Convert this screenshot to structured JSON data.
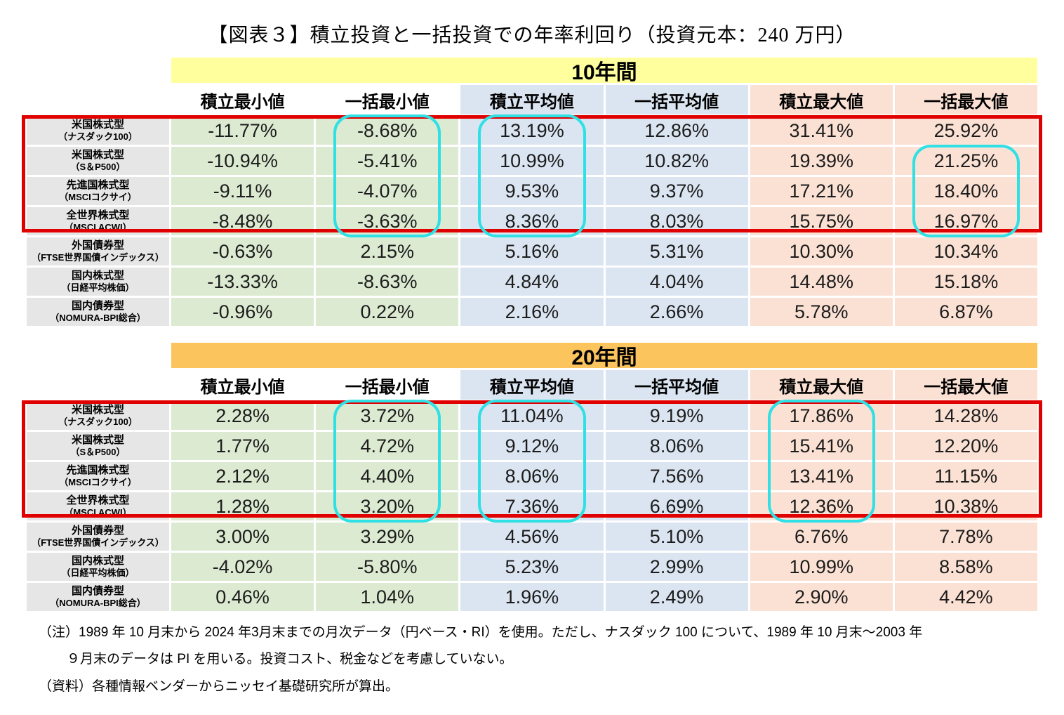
{
  "title": "【図表３】積立投資と一括投資での年率利回り（投資元本：240 万円）",
  "colors": {
    "min_cell": "#dcead2",
    "avg_cell": "#dbe5f1",
    "max_cell": "#fbe1d4",
    "label_cell": "#e7e6e6",
    "band_10y": "#ffff9e",
    "band_20y": "#fcc45c",
    "red_box": "#e00000",
    "cyan": "#2fe0e4"
  },
  "chart_data": {
    "type": "table",
    "title": "積立投資と一括投資での年率利回り（投資元本：240 万円）",
    "columns": [
      "積立最小値",
      "一括最小値",
      "積立平均値",
      "一括平均値",
      "積立最大値",
      "一括最大値"
    ],
    "tables": [
      {
        "period": "10年間",
        "band_color": "#ffff9e",
        "rows": [
          {
            "category": "米国株式型",
            "index": "（ナスダック100）",
            "values": [
              "-11.77%",
              "-8.68%",
              "13.19%",
              "12.86%",
              "31.41%",
              "25.92%"
            ]
          },
          {
            "category": "米国株式型",
            "index": "（S＆P500）",
            "values": [
              "-10.94%",
              "-5.41%",
              "10.99%",
              "10.82%",
              "19.39%",
              "21.25%"
            ]
          },
          {
            "category": "先進国株式型",
            "index": "（MSCIコクサイ）",
            "values": [
              "-9.11%",
              "-4.07%",
              "9.53%",
              "9.37%",
              "17.21%",
              "18.40%"
            ]
          },
          {
            "category": "全世界株式型",
            "index": "（MSCI ACWI）",
            "values": [
              "-8.48%",
              "-3.63%",
              "8.36%",
              "8.03%",
              "15.75%",
              "16.97%"
            ]
          },
          {
            "category": "外国債券型",
            "index": "（FTSE世界国債インデックス）",
            "values": [
              "-0.63%",
              "2.15%",
              "5.16%",
              "5.31%",
              "10.30%",
              "10.34%"
            ]
          },
          {
            "category": "国内株式型",
            "index": "（日経平均株価）",
            "values": [
              "-13.33%",
              "-8.63%",
              "4.84%",
              "4.04%",
              "14.48%",
              "15.18%"
            ]
          },
          {
            "category": "国内債券型",
            "index": "（NOMURA-BPI総合）",
            "values": [
              "-0.96%",
              "0.22%",
              "2.16%",
              "2.66%",
              "5.78%",
              "6.87%"
            ]
          }
        ],
        "red_box_rows": [
          0,
          3
        ],
        "cyan_highlights": [
          {
            "col": 1,
            "row_start": 0,
            "row_end": 3
          },
          {
            "col": 2,
            "row_start": 0,
            "row_end": 3
          },
          {
            "col": 5,
            "row_start": 1,
            "row_end": 3
          }
        ]
      },
      {
        "period": "20年間",
        "band_color": "#fcc45c",
        "rows": [
          {
            "category": "米国株式型",
            "index": "（ナスダック100）",
            "values": [
              "2.28%",
              "3.72%",
              "11.04%",
              "9.19%",
              "17.86%",
              "14.28%"
            ]
          },
          {
            "category": "米国株式型",
            "index": "（S＆P500）",
            "values": [
              "1.77%",
              "4.72%",
              "9.12%",
              "8.06%",
              "15.41%",
              "12.20%"
            ]
          },
          {
            "category": "先進国株式型",
            "index": "（MSCIコクサイ）",
            "values": [
              "2.12%",
              "4.40%",
              "8.06%",
              "7.56%",
              "13.41%",
              "11.15%"
            ]
          },
          {
            "category": "全世界株式型",
            "index": "（MSCI ACWI）",
            "values": [
              "1.28%",
              "3.20%",
              "7.36%",
              "6.69%",
              "12.36%",
              "10.38%"
            ]
          },
          {
            "category": "外国債券型",
            "index": "（FTSE世界国債インデックス）",
            "values": [
              "3.00%",
              "3.29%",
              "4.56%",
              "5.10%",
              "6.76%",
              "7.78%"
            ]
          },
          {
            "category": "国内株式型",
            "index": "（日経平均株価）",
            "values": [
              "-4.02%",
              "-5.80%",
              "5.23%",
              "2.99%",
              "10.99%",
              "8.58%"
            ]
          },
          {
            "category": "国内債券型",
            "index": "（NOMURA-BPI総合）",
            "values": [
              "0.46%",
              "1.04%",
              "1.96%",
              "2.49%",
              "2.90%",
              "4.42%"
            ]
          }
        ],
        "red_box_rows": [
          0,
          3
        ],
        "cyan_highlights": [
          {
            "col": 1,
            "row_start": 0,
            "row_end": 3
          },
          {
            "col": 2,
            "row_start": 0,
            "row_end": 3
          },
          {
            "col": 4,
            "row_start": 0,
            "row_end": 3
          }
        ]
      }
    ]
  },
  "notes": {
    "line1": "（注）1989 年 10 月末から 2024 年3月末までの月次データ（円ベース・RI）を使用。ただし、ナスダック 100 について、1989 年 10 月末～2003 年",
    "line2": "９月末のデータは PI を用いる。投資コスト、税金などを考慮していない。",
    "line3": "（資料）各種情報ベンダーからニッセイ基礎研究所が算出。"
  }
}
